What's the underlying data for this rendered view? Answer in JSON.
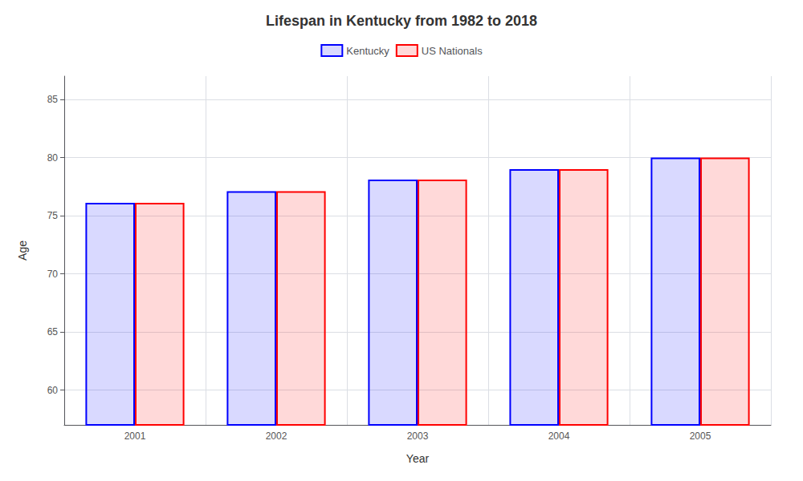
{
  "chart_data": {
    "type": "bar",
    "title": "Lifespan in Kentucky from 1982 to 2018",
    "xlabel": "Year",
    "ylabel": "Age",
    "categories": [
      "2001",
      "2002",
      "2003",
      "2004",
      "2005"
    ],
    "series": [
      {
        "name": "Kentucky",
        "color": "#0000ff",
        "values": [
          76.1,
          77.1,
          78.1,
          79.0,
          80.0
        ]
      },
      {
        "name": "US Nationals",
        "color": "#ff0000",
        "values": [
          76.1,
          77.1,
          78.1,
          79.0,
          80.0
        ]
      }
    ],
    "ylim": [
      57,
      87
    ],
    "yticks": [
      60,
      65,
      70,
      75,
      80,
      85
    ],
    "grid": true,
    "legend": "top"
  }
}
